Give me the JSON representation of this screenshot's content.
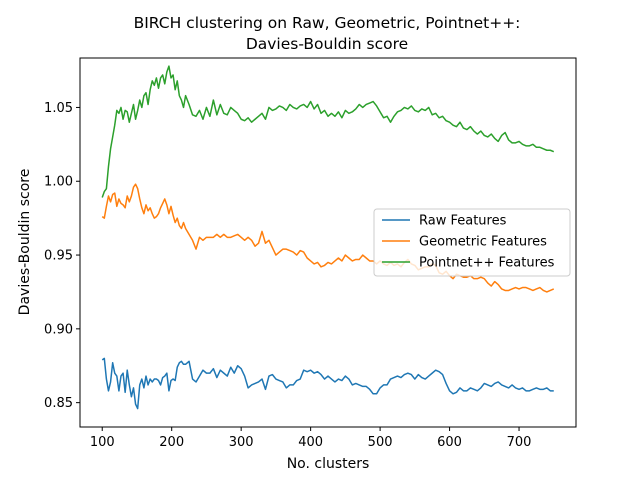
{
  "chart_data": {
    "type": "line",
    "title": "BIRCH clustering on Raw, Geometric, Pointnet++:",
    "subtitle": "Davies-Bouldin score",
    "xlabel": "No. clusters",
    "ylabel": "Davies-Bouldin score",
    "xlim": [
      68,
      782
    ],
    "ylim": [
      0.8335,
      1.0835
    ],
    "xticks": [
      100,
      200,
      300,
      400,
      500,
      600,
      700
    ],
    "yticks": [
      0.85,
      0.9,
      0.95,
      1.0,
      1.05
    ],
    "ytick_labels": [
      "0.85",
      "0.90",
      "0.95",
      "1.00",
      "1.05"
    ],
    "legend_position": "center-right",
    "grid": false,
    "series": [
      {
        "name": "Raw Features",
        "color": "#1f77b4",
        "x": [
          100,
          103,
          106,
          109,
          112,
          115,
          118,
          121,
          124,
          127,
          130,
          133,
          136,
          139,
          142,
          145,
          148,
          151,
          154,
          157,
          160,
          163,
          166,
          169,
          172,
          175,
          178,
          181,
          184,
          187,
          190,
          193,
          196,
          199,
          202,
          205,
          208,
          211,
          214,
          217,
          220,
          225,
          230,
          235,
          240,
          245,
          250,
          255,
          260,
          265,
          270,
          275,
          280,
          285,
          290,
          295,
          300,
          305,
          310,
          315,
          320,
          325,
          330,
          335,
          340,
          345,
          350,
          355,
          360,
          365,
          370,
          375,
          380,
          385,
          390,
          395,
          400,
          405,
          410,
          415,
          420,
          425,
          430,
          435,
          440,
          445,
          450,
          455,
          460,
          465,
          470,
          475,
          480,
          485,
          490,
          495,
          500,
          505,
          510,
          515,
          520,
          525,
          530,
          535,
          540,
          545,
          550,
          555,
          560,
          565,
          570,
          575,
          580,
          585,
          590,
          595,
          600,
          605,
          610,
          615,
          620,
          625,
          630,
          635,
          640,
          645,
          650,
          655,
          660,
          665,
          670,
          675,
          680,
          685,
          690,
          695,
          700,
          705,
          710,
          715,
          720,
          725,
          730,
          735,
          740,
          745,
          750
        ],
        "values": [
          0.879,
          0.88,
          0.866,
          0.858,
          0.864,
          0.877,
          0.87,
          0.868,
          0.858,
          0.868,
          0.87,
          0.857,
          0.872,
          0.862,
          0.854,
          0.86,
          0.849,
          0.846,
          0.862,
          0.866,
          0.86,
          0.868,
          0.862,
          0.866,
          0.864,
          0.866,
          0.866,
          0.865,
          0.862,
          0.867,
          0.868,
          0.87,
          0.858,
          0.865,
          0.866,
          0.865,
          0.874,
          0.877,
          0.878,
          0.876,
          0.876,
          0.878,
          0.866,
          0.864,
          0.868,
          0.872,
          0.87,
          0.87,
          0.873,
          0.867,
          0.872,
          0.87,
          0.868,
          0.874,
          0.87,
          0.875,
          0.873,
          0.868,
          0.86,
          0.862,
          0.863,
          0.864,
          0.866,
          0.859,
          0.868,
          0.869,
          0.866,
          0.865,
          0.864,
          0.86,
          0.862,
          0.862,
          0.865,
          0.866,
          0.872,
          0.871,
          0.872,
          0.87,
          0.871,
          0.869,
          0.866,
          0.868,
          0.866,
          0.864,
          0.866,
          0.865,
          0.868,
          0.866,
          0.862,
          0.863,
          0.862,
          0.861,
          0.861,
          0.859,
          0.856,
          0.856,
          0.86,
          0.862,
          0.862,
          0.866,
          0.867,
          0.868,
          0.867,
          0.869,
          0.87,
          0.869,
          0.866,
          0.869,
          0.867,
          0.866,
          0.868,
          0.87,
          0.872,
          0.871,
          0.869,
          0.863,
          0.858,
          0.856,
          0.857,
          0.86,
          0.858,
          0.858,
          0.86,
          0.859,
          0.858,
          0.86,
          0.863,
          0.862,
          0.861,
          0.863,
          0.864,
          0.862,
          0.861,
          0.86,
          0.862,
          0.86,
          0.859,
          0.86,
          0.858,
          0.858,
          0.859,
          0.86,
          0.859,
          0.859,
          0.86,
          0.858,
          0.858
        ]
      },
      {
        "name": "Geometric Features",
        "color": "#ff7f0e",
        "x": [
          100,
          103,
          106,
          109,
          112,
          115,
          118,
          121,
          124,
          127,
          130,
          133,
          136,
          139,
          142,
          145,
          148,
          151,
          154,
          157,
          160,
          163,
          166,
          169,
          172,
          175,
          178,
          181,
          184,
          187,
          190,
          193,
          196,
          199,
          202,
          205,
          208,
          211,
          214,
          217,
          220,
          225,
          230,
          235,
          240,
          245,
          250,
          255,
          260,
          265,
          270,
          275,
          280,
          285,
          290,
          295,
          300,
          305,
          310,
          315,
          320,
          325,
          330,
          335,
          340,
          345,
          350,
          355,
          360,
          365,
          370,
          375,
          380,
          385,
          390,
          395,
          400,
          405,
          410,
          415,
          420,
          425,
          430,
          435,
          440,
          445,
          450,
          455,
          460,
          465,
          470,
          475,
          480,
          485,
          490,
          495,
          500,
          505,
          510,
          515,
          520,
          525,
          530,
          535,
          540,
          545,
          550,
          555,
          560,
          565,
          570,
          575,
          580,
          585,
          590,
          595,
          600,
          605,
          610,
          615,
          620,
          625,
          630,
          635,
          640,
          645,
          650,
          655,
          660,
          665,
          670,
          675,
          680,
          685,
          690,
          695,
          700,
          705,
          710,
          715,
          720,
          725,
          730,
          735,
          740,
          745,
          750
        ],
        "values": [
          0.976,
          0.975,
          0.983,
          0.99,
          0.986,
          0.991,
          0.992,
          0.983,
          0.988,
          0.985,
          0.984,
          0.982,
          0.99,
          0.986,
          0.99,
          0.996,
          0.998,
          0.995,
          0.988,
          0.982,
          0.978,
          0.984,
          0.98,
          0.982,
          0.978,
          0.975,
          0.976,
          0.978,
          0.982,
          0.985,
          0.988,
          0.984,
          0.978,
          0.983,
          0.977,
          0.972,
          0.975,
          0.97,
          0.968,
          0.972,
          0.968,
          0.964,
          0.96,
          0.954,
          0.962,
          0.96,
          0.962,
          0.962,
          0.962,
          0.964,
          0.962,
          0.964,
          0.962,
          0.962,
          0.963,
          0.964,
          0.962,
          0.96,
          0.962,
          0.96,
          0.956,
          0.958,
          0.966,
          0.958,
          0.96,
          0.955,
          0.95,
          0.952,
          0.954,
          0.954,
          0.953,
          0.952,
          0.95,
          0.953,
          0.952,
          0.948,
          0.946,
          0.944,
          0.945,
          0.942,
          0.943,
          0.945,
          0.944,
          0.946,
          0.948,
          0.946,
          0.95,
          0.948,
          0.946,
          0.947,
          0.947,
          0.95,
          0.948,
          0.946,
          0.946,
          0.944,
          0.946,
          0.944,
          0.943,
          0.945,
          0.943,
          0.944,
          0.942,
          0.945,
          0.947,
          0.944,
          0.943,
          0.94,
          0.941,
          0.942,
          0.942,
          0.944,
          0.943,
          0.938,
          0.937,
          0.939,
          0.936,
          0.934,
          0.937,
          0.936,
          0.935,
          0.935,
          0.936,
          0.934,
          0.934,
          0.935,
          0.934,
          0.931,
          0.929,
          0.932,
          0.93,
          0.927,
          0.926,
          0.926,
          0.927,
          0.928,
          0.927,
          0.928,
          0.928,
          0.927,
          0.926,
          0.927,
          0.928,
          0.926,
          0.925,
          0.926,
          0.927
        ]
      },
      {
        "name": "Pointnet++ Features",
        "color": "#2ca02c",
        "x": [
          100,
          103,
          106,
          109,
          112,
          115,
          118,
          121,
          124,
          127,
          130,
          133,
          136,
          139,
          142,
          145,
          148,
          151,
          154,
          157,
          160,
          163,
          166,
          169,
          172,
          175,
          178,
          181,
          184,
          187,
          190,
          193,
          196,
          199,
          202,
          205,
          208,
          211,
          214,
          217,
          220,
          225,
          230,
          235,
          240,
          245,
          250,
          255,
          260,
          265,
          270,
          275,
          280,
          285,
          290,
          295,
          300,
          305,
          310,
          315,
          320,
          325,
          330,
          335,
          340,
          345,
          350,
          355,
          360,
          365,
          370,
          375,
          380,
          385,
          390,
          395,
          400,
          405,
          410,
          415,
          420,
          425,
          430,
          435,
          440,
          445,
          450,
          455,
          460,
          465,
          470,
          475,
          480,
          485,
          490,
          495,
          500,
          505,
          510,
          515,
          520,
          525,
          530,
          535,
          540,
          545,
          550,
          555,
          560,
          565,
          570,
          575,
          580,
          585,
          590,
          595,
          600,
          605,
          610,
          615,
          620,
          625,
          630,
          635,
          640,
          645,
          650,
          655,
          660,
          665,
          670,
          675,
          680,
          685,
          690,
          695,
          700,
          705,
          710,
          715,
          720,
          725,
          730,
          735,
          740,
          745,
          750
        ],
        "values": [
          0.989,
          0.993,
          0.995,
          1.01,
          1.022,
          1.03,
          1.038,
          1.048,
          1.046,
          1.05,
          1.042,
          1.048,
          1.047,
          1.04,
          1.046,
          1.052,
          1.042,
          1.048,
          1.055,
          1.05,
          1.058,
          1.06,
          1.052,
          1.062,
          1.068,
          1.065,
          1.07,
          1.063,
          1.07,
          1.072,
          1.066,
          1.074,
          1.078,
          1.07,
          1.072,
          1.062,
          1.068,
          1.058,
          1.055,
          1.05,
          1.058,
          1.052,
          1.045,
          1.044,
          1.048,
          1.042,
          1.05,
          1.044,
          1.055,
          1.045,
          1.052,
          1.046,
          1.045,
          1.05,
          1.048,
          1.046,
          1.042,
          1.041,
          1.043,
          1.04,
          1.042,
          1.044,
          1.046,
          1.042,
          1.05,
          1.048,
          1.049,
          1.051,
          1.05,
          1.048,
          1.052,
          1.05,
          1.049,
          1.051,
          1.052,
          1.05,
          1.054,
          1.049,
          1.052,
          1.046,
          1.048,
          1.044,
          1.046,
          1.044,
          1.047,
          1.043,
          1.048,
          1.046,
          1.047,
          1.049,
          1.052,
          1.05,
          1.052,
          1.053,
          1.054,
          1.051,
          1.047,
          1.043,
          1.044,
          1.04,
          1.044,
          1.047,
          1.048,
          1.05,
          1.049,
          1.051,
          1.048,
          1.047,
          1.049,
          1.048,
          1.05,
          1.045,
          1.046,
          1.043,
          1.044,
          1.041,
          1.04,
          1.038,
          1.037,
          1.04,
          1.036,
          1.035,
          1.037,
          1.034,
          1.032,
          1.034,
          1.031,
          1.03,
          1.032,
          1.029,
          1.027,
          1.031,
          1.033,
          1.028,
          1.026,
          1.026,
          1.027,
          1.025,
          1.024,
          1.024,
          1.025,
          1.023,
          1.023,
          1.022,
          1.021,
          1.021,
          1.02
        ]
      }
    ]
  }
}
